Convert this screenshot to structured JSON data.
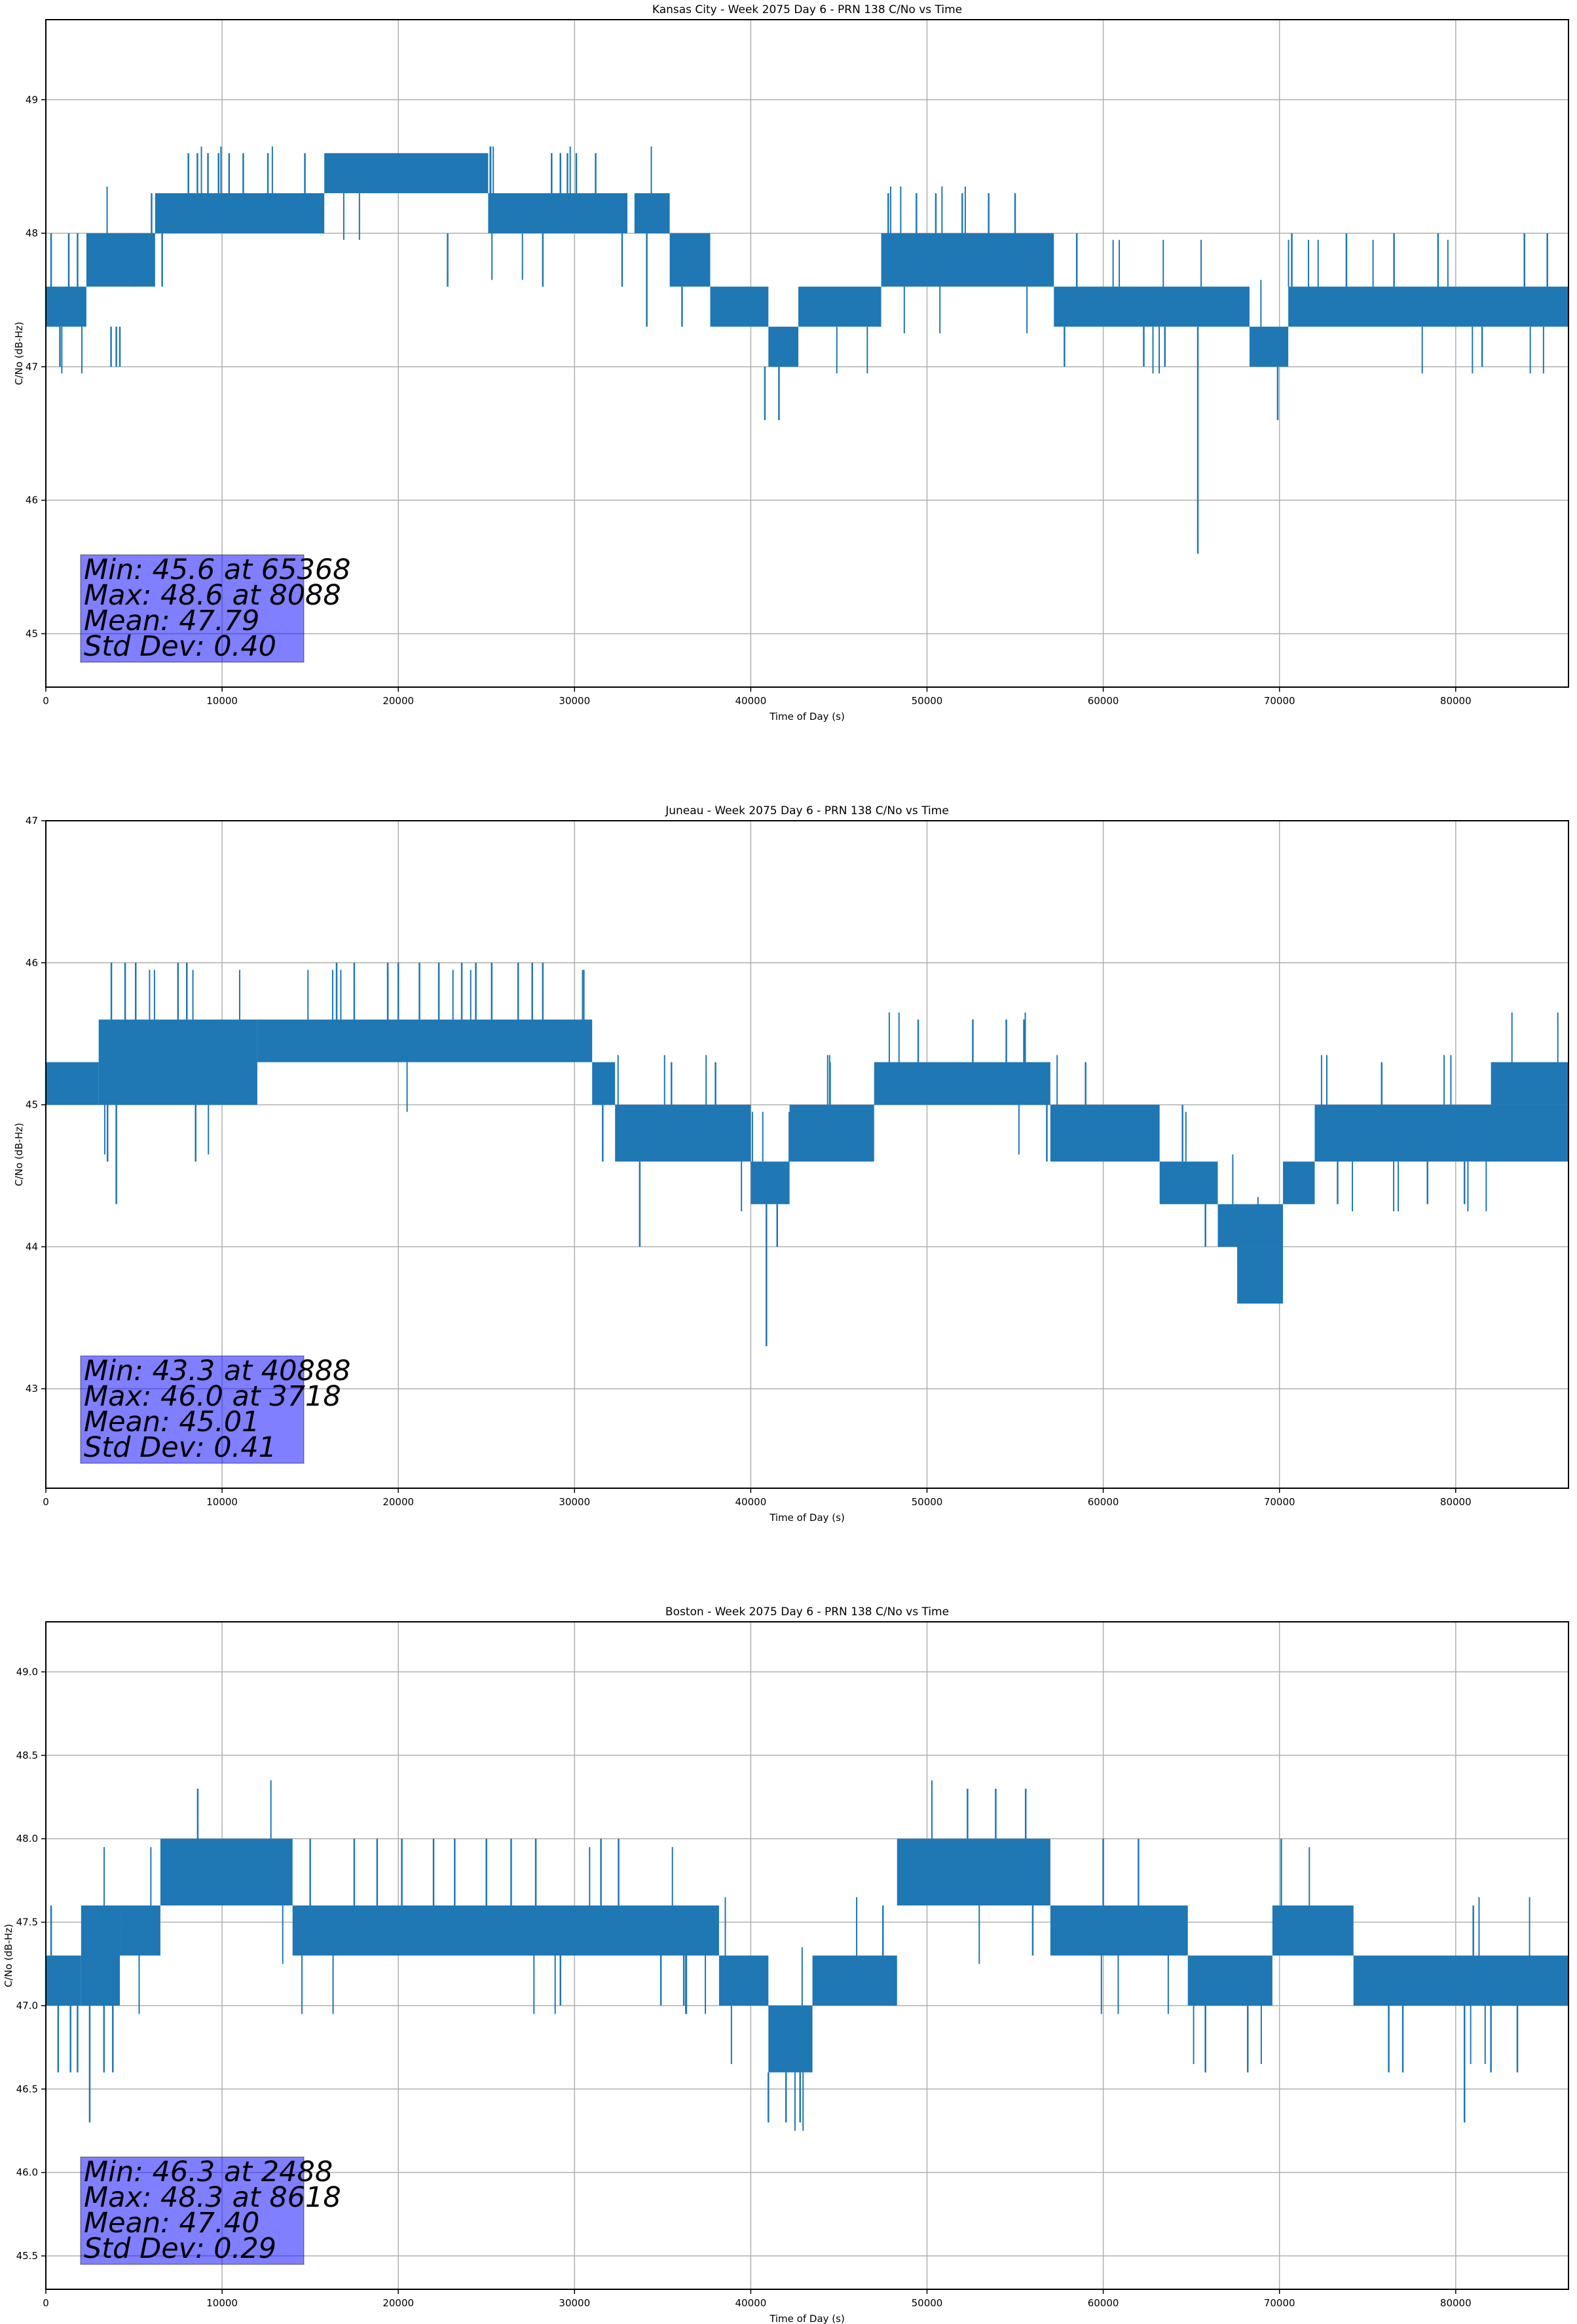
{
  "chart_data": [
    {
      "type": "line",
      "title": "Kansas City - Week 2075 Day 6 - PRN 138 C/No vs Time",
      "xlabel": "Time of Day (s)",
      "ylabel": "C/No (dB-Hz)",
      "xlim": [
        0,
        86400
      ],
      "ylim": [
        44.6,
        49.6
      ],
      "xticks": [
        0,
        10000,
        20000,
        30000,
        40000,
        50000,
        60000,
        70000,
        80000
      ],
      "yticks": [
        45,
        46,
        47,
        48,
        49
      ],
      "ytick_labels": [
        "45",
        "46",
        "47",
        "48",
        "49"
      ],
      "grid": true,
      "line_color": "#1f77b4",
      "quantized_levels": [
        45.6,
        46.6,
        47.0,
        47.3,
        47.6,
        48.0,
        48.3,
        48.6
      ],
      "bands": [
        {
          "t0": 0,
          "t1": 2300,
          "low": 47.3,
          "high": 47.6
        },
        {
          "t0": 2300,
          "t1": 6200,
          "low": 47.6,
          "high": 48.0
        },
        {
          "t0": 6200,
          "t1": 15800,
          "low": 48.0,
          "high": 48.3
        },
        {
          "t0": 15800,
          "t1": 25100,
          "low": 48.3,
          "high": 48.6
        },
        {
          "t0": 25100,
          "t1": 33000,
          "low": 48.0,
          "high": 48.3
        },
        {
          "t0": 33400,
          "t1": 35400,
          "low": 48.0,
          "high": 48.3
        },
        {
          "t0": 35400,
          "t1": 37700,
          "low": 47.6,
          "high": 48.0
        },
        {
          "t0": 37700,
          "t1": 41000,
          "low": 47.3,
          "high": 47.6
        },
        {
          "t0": 41000,
          "t1": 42700,
          "low": 47.0,
          "high": 47.3
        },
        {
          "t0": 42700,
          "t1": 47400,
          "low": 47.3,
          "high": 47.6
        },
        {
          "t0": 47400,
          "t1": 57200,
          "low": 47.6,
          "high": 48.0
        },
        {
          "t0": 57200,
          "t1": 68300,
          "low": 47.3,
          "high": 47.6
        },
        {
          "t0": 68300,
          "t1": 70500,
          "low": 47.0,
          "high": 47.3
        },
        {
          "t0": 70500,
          "t1": 86400,
          "low": 47.3,
          "high": 47.6
        }
      ],
      "spikes": [
        {
          "t": 300,
          "from": 47.3,
          "to": 48.0
        },
        {
          "t": 800,
          "from": 47.3,
          "to": 47.0
        },
        {
          "t": 1300,
          "from": 47.6,
          "to": 48.0
        },
        {
          "t": 1800,
          "from": 47.6,
          "to": 48.0
        },
        {
          "t": 3700,
          "from": 47.3,
          "to": 47.0
        },
        {
          "t": 4000,
          "from": 47.3,
          "to": 47.0
        },
        {
          "t": 4200,
          "from": 47.3,
          "to": 47.0
        },
        {
          "t": 5000,
          "from": 47.6,
          "to": 48.0
        },
        {
          "t": 6000,
          "from": 48.0,
          "to": 48.3
        },
        {
          "t": 6600,
          "from": 47.6,
          "to": 48.3
        },
        {
          "t": 8088,
          "from": 48.3,
          "to": 48.6
        },
        {
          "t": 8600,
          "from": 48.3,
          "to": 48.6
        },
        {
          "t": 9200,
          "from": 48.3,
          "to": 48.6
        },
        {
          "t": 9800,
          "from": 48.3,
          "to": 48.6
        },
        {
          "t": 10400,
          "from": 48.3,
          "to": 48.6
        },
        {
          "t": 11200,
          "from": 48.3,
          "to": 48.6
        },
        {
          "t": 12600,
          "from": 48.3,
          "to": 48.6
        },
        {
          "t": 14700,
          "from": 48.3,
          "to": 48.6
        },
        {
          "t": 22800,
          "from": 48.0,
          "to": 47.6
        },
        {
          "t": 28200,
          "from": 48.0,
          "to": 47.6
        },
        {
          "t": 28700,
          "from": 48.3,
          "to": 48.6
        },
        {
          "t": 29200,
          "from": 48.3,
          "to": 48.6
        },
        {
          "t": 29600,
          "from": 48.3,
          "to": 48.6
        },
        {
          "t": 30100,
          "from": 48.3,
          "to": 48.6
        },
        {
          "t": 31200,
          "from": 48.3,
          "to": 48.6
        },
        {
          "t": 32700,
          "from": 48.0,
          "to": 47.6
        },
        {
          "t": 34100,
          "from": 48.0,
          "to": 47.3
        },
        {
          "t": 36100,
          "from": 47.6,
          "to": 47.3
        },
        {
          "t": 40800,
          "from": 47.0,
          "to": 46.6
        },
        {
          "t": 41600,
          "from": 47.0,
          "to": 46.6
        },
        {
          "t": 47800,
          "from": 48.0,
          "to": 48.3
        },
        {
          "t": 49400,
          "from": 48.0,
          "to": 48.3
        },
        {
          "t": 50500,
          "from": 48.0,
          "to": 48.3
        },
        {
          "t": 52000,
          "from": 48.0,
          "to": 48.3
        },
        {
          "t": 53500,
          "from": 48.0,
          "to": 48.3
        },
        {
          "t": 55000,
          "from": 48.0,
          "to": 48.3
        },
        {
          "t": 57800,
          "from": 47.3,
          "to": 47.0
        },
        {
          "t": 58500,
          "from": 47.6,
          "to": 48.0
        },
        {
          "t": 62300,
          "from": 47.3,
          "to": 47.0
        },
        {
          "t": 63500,
          "from": 47.3,
          "to": 47.0
        },
        {
          "t": 65368,
          "from": 47.3,
          "to": 45.6
        },
        {
          "t": 69900,
          "from": 47.0,
          "to": 46.6
        },
        {
          "t": 70700,
          "from": 47.6,
          "to": 48.0
        },
        {
          "t": 73800,
          "from": 47.6,
          "to": 48.0
        },
        {
          "t": 76500,
          "from": 47.6,
          "to": 48.0
        },
        {
          "t": 79000,
          "from": 47.6,
          "to": 48.0
        },
        {
          "t": 81500,
          "from": 47.3,
          "to": 47.0
        },
        {
          "t": 83900,
          "from": 47.6,
          "to": 48.0
        },
        {
          "t": 85200,
          "from": 47.6,
          "to": 48.0
        }
      ],
      "stats": {
        "min_label": "Min: 45.6 at 65368",
        "max_label": "Max: 48.6 at 8088",
        "mean_label": "Mean: 47.79",
        "std_label": "Std Dev: 0.40",
        "min": 45.6,
        "min_time": 65368,
        "max": 48.6,
        "max_time": 8088,
        "mean": 47.79,
        "std": 0.4
      }
    },
    {
      "type": "line",
      "title": "Juneau - Week 2075 Day 6 - PRN 138 C/No vs Time",
      "xlabel": "Time of Day (s)",
      "ylabel": "C/No (dB-Hz)",
      "xlim": [
        0,
        86400
      ],
      "ylim": [
        42.3,
        47.0
      ],
      "xticks": [
        0,
        10000,
        20000,
        30000,
        40000,
        50000,
        60000,
        70000,
        80000
      ],
      "yticks": [
        43,
        44,
        45,
        46,
        47
      ],
      "ytick_labels": [
        "43",
        "44",
        "45",
        "46",
        "47"
      ],
      "grid": true,
      "line_color": "#1f77b4",
      "quantized_levels": [
        43.3,
        43.6,
        44.0,
        44.3,
        44.6,
        45.0,
        45.3,
        45.6,
        46.0
      ],
      "bands": [
        {
          "t0": 0,
          "t1": 3000,
          "low": 45.0,
          "high": 45.3
        },
        {
          "t0": 3000,
          "t1": 12000,
          "low": 45.0,
          "high": 45.6
        },
        {
          "t0": 12000,
          "t1": 31000,
          "low": 45.3,
          "high": 45.6
        },
        {
          "t0": 31000,
          "t1": 32300,
          "low": 45.0,
          "high": 45.3
        },
        {
          "t0": 32300,
          "t1": 40000,
          "low": 44.6,
          "high": 45.0
        },
        {
          "t0": 40000,
          "t1": 42200,
          "low": 44.3,
          "high": 44.6
        },
        {
          "t0": 42200,
          "t1": 47000,
          "low": 44.6,
          "high": 45.0
        },
        {
          "t0": 47000,
          "t1": 57000,
          "low": 45.0,
          "high": 45.3
        },
        {
          "t0": 57000,
          "t1": 63200,
          "low": 44.6,
          "high": 45.0
        },
        {
          "t0": 63200,
          "t1": 66500,
          "low": 44.3,
          "high": 44.6
        },
        {
          "t0": 66500,
          "t1": 70200,
          "low": 44.0,
          "high": 44.3
        },
        {
          "t0": 67600,
          "t1": 70200,
          "low": 43.6,
          "high": 44.0
        },
        {
          "t0": 70200,
          "t1": 72000,
          "low": 44.3,
          "high": 44.6
        },
        {
          "t0": 72000,
          "t1": 86400,
          "low": 44.6,
          "high": 45.0
        },
        {
          "t0": 82000,
          "t1": 86400,
          "low": 45.0,
          "high": 45.3
        }
      ],
      "spikes": [
        {
          "t": 3718,
          "from": 45.6,
          "to": 46.0
        },
        {
          "t": 3500,
          "from": 45.0,
          "to": 44.6
        },
        {
          "t": 4000,
          "from": 45.0,
          "to": 44.3
        },
        {
          "t": 4500,
          "from": 45.6,
          "to": 46.0
        },
        {
          "t": 5100,
          "from": 45.6,
          "to": 46.0
        },
        {
          "t": 7500,
          "from": 45.6,
          "to": 46.0
        },
        {
          "t": 8000,
          "from": 45.6,
          "to": 46.0
        },
        {
          "t": 8500,
          "from": 45.0,
          "to": 44.6
        },
        {
          "t": 16500,
          "from": 45.6,
          "to": 46.0
        },
        {
          "t": 17500,
          "from": 45.6,
          "to": 46.0
        },
        {
          "t": 19400,
          "from": 45.6,
          "to": 46.0
        },
        {
          "t": 20000,
          "from": 45.6,
          "to": 46.0
        },
        {
          "t": 21200,
          "from": 45.6,
          "to": 46.0
        },
        {
          "t": 22300,
          "from": 45.6,
          "to": 46.0
        },
        {
          "t": 23600,
          "from": 45.6,
          "to": 46.0
        },
        {
          "t": 24400,
          "from": 45.6,
          "to": 46.0
        },
        {
          "t": 25300,
          "from": 45.6,
          "to": 46.0
        },
        {
          "t": 26800,
          "from": 45.6,
          "to": 46.0
        },
        {
          "t": 27600,
          "from": 45.6,
          "to": 46.0
        },
        {
          "t": 28200,
          "from": 45.6,
          "to": 46.0
        },
        {
          "t": 31600,
          "from": 45.0,
          "to": 44.6
        },
        {
          "t": 33700,
          "from": 44.6,
          "to": 44.0
        },
        {
          "t": 35500,
          "from": 45.0,
          "to": 45.3
        },
        {
          "t": 38000,
          "from": 45.0,
          "to": 45.3
        },
        {
          "t": 40888,
          "from": 44.3,
          "to": 43.3
        },
        {
          "t": 41500,
          "from": 44.3,
          "to": 44.0
        },
        {
          "t": 44500,
          "from": 45.0,
          "to": 45.3
        },
        {
          "t": 49500,
          "from": 45.3,
          "to": 45.6
        },
        {
          "t": 52600,
          "from": 45.3,
          "to": 45.6
        },
        {
          "t": 54500,
          "from": 45.3,
          "to": 45.6
        },
        {
          "t": 55500,
          "from": 45.3,
          "to": 45.6
        },
        {
          "t": 56800,
          "from": 45.0,
          "to": 44.6
        },
        {
          "t": 59000,
          "from": 45.0,
          "to": 45.3
        },
        {
          "t": 64500,
          "from": 44.6,
          "to": 45.0
        },
        {
          "t": 65800,
          "from": 44.3,
          "to": 44.0
        },
        {
          "t": 73300,
          "from": 44.6,
          "to": 44.3
        },
        {
          "t": 75800,
          "from": 45.0,
          "to": 45.3
        },
        {
          "t": 78400,
          "from": 44.6,
          "to": 44.3
        },
        {
          "t": 80500,
          "from": 44.6,
          "to": 44.3
        }
      ],
      "stats": {
        "min_label": "Min: 43.3 at 40888",
        "max_label": "Max: 46.0 at 3718",
        "mean_label": "Mean: 45.01",
        "std_label": "Std Dev: 0.41",
        "min": 43.3,
        "min_time": 40888,
        "max": 46.0,
        "max_time": 3718,
        "mean": 45.01,
        "std": 0.41
      }
    },
    {
      "type": "line",
      "title": "Boston - Week 2075 Day 6 - PRN 138 C/No vs Time",
      "xlabel": "Time of Day (s)",
      "ylabel": "C/No (dB-Hz)",
      "xlim": [
        0,
        86400
      ],
      "ylim": [
        45.3,
        49.3
      ],
      "xticks": [
        0,
        10000,
        20000,
        30000,
        40000,
        50000,
        60000,
        70000,
        80000
      ],
      "yticks": [
        45.5,
        46.0,
        46.5,
        47.0,
        47.5,
        48.0,
        48.5,
        49.0
      ],
      "ytick_labels": [
        "45.5",
        "46.0",
        "46.5",
        "47.0",
        "47.5",
        "48.0",
        "48.5",
        "49.0"
      ],
      "grid": true,
      "line_color": "#1f77b4",
      "quantized_levels": [
        46.3,
        46.6,
        47.0,
        47.3,
        47.6,
        48.0,
        48.3
      ],
      "bands": [
        {
          "t0": 0,
          "t1": 2000,
          "low": 47.0,
          "high": 47.3
        },
        {
          "t0": 2000,
          "t1": 4200,
          "low": 47.0,
          "high": 47.6
        },
        {
          "t0": 4200,
          "t1": 6500,
          "low": 47.3,
          "high": 47.6
        },
        {
          "t0": 6500,
          "t1": 14000,
          "low": 47.6,
          "high": 48.0
        },
        {
          "t0": 14000,
          "t1": 38200,
          "low": 47.3,
          "high": 47.6
        },
        {
          "t0": 38200,
          "t1": 41000,
          "low": 47.0,
          "high": 47.3
        },
        {
          "t0": 41000,
          "t1": 43500,
          "low": 46.6,
          "high": 47.0
        },
        {
          "t0": 43500,
          "t1": 48300,
          "low": 47.0,
          "high": 47.3
        },
        {
          "t0": 48300,
          "t1": 57000,
          "low": 47.6,
          "high": 48.0
        },
        {
          "t0": 57000,
          "t1": 64800,
          "low": 47.3,
          "high": 47.6
        },
        {
          "t0": 64800,
          "t1": 69600,
          "low": 47.0,
          "high": 47.3
        },
        {
          "t0": 69600,
          "t1": 74200,
          "low": 47.3,
          "high": 47.6
        },
        {
          "t0": 74200,
          "t1": 86400,
          "low": 47.0,
          "high": 47.3
        }
      ],
      "spikes": [
        {
          "t": 300,
          "from": 47.3,
          "to": 47.6
        },
        {
          "t": 700,
          "from": 47.0,
          "to": 46.6
        },
        {
          "t": 1400,
          "from": 47.0,
          "to": 46.6
        },
        {
          "t": 1800,
          "from": 47.0,
          "to": 46.6
        },
        {
          "t": 2488,
          "from": 47.0,
          "to": 46.3
        },
        {
          "t": 3300,
          "from": 47.0,
          "to": 46.6
        },
        {
          "t": 3800,
          "from": 47.0,
          "to": 46.6
        },
        {
          "t": 6800,
          "from": 47.6,
          "to": 48.0
        },
        {
          "t": 8618,
          "from": 48.0,
          "to": 48.3
        },
        {
          "t": 15000,
          "from": 47.6,
          "to": 48.0
        },
        {
          "t": 17500,
          "from": 47.6,
          "to": 48.0
        },
        {
          "t": 18800,
          "from": 47.6,
          "to": 48.0
        },
        {
          "t": 20200,
          "from": 47.6,
          "to": 48.0
        },
        {
          "t": 22000,
          "from": 47.6,
          "to": 48.0
        },
        {
          "t": 23200,
          "from": 47.6,
          "to": 48.0
        },
        {
          "t": 25000,
          "from": 47.6,
          "to": 48.0
        },
        {
          "t": 26400,
          "from": 47.6,
          "to": 48.0
        },
        {
          "t": 27800,
          "from": 47.6,
          "to": 48.0
        },
        {
          "t": 29200,
          "from": 47.3,
          "to": 47.0
        },
        {
          "t": 31500,
          "from": 47.6,
          "to": 48.0
        },
        {
          "t": 32500,
          "from": 47.6,
          "to": 48.0
        },
        {
          "t": 34900,
          "from": 47.3,
          "to": 47.0
        },
        {
          "t": 36200,
          "from": 47.3,
          "to": 47.0
        },
        {
          "t": 41000,
          "from": 46.6,
          "to": 46.3
        },
        {
          "t": 42000,
          "from": 46.6,
          "to": 46.3
        },
        {
          "t": 42800,
          "from": 46.6,
          "to": 46.3
        },
        {
          "t": 47500,
          "from": 47.3,
          "to": 47.6
        },
        {
          "t": 52300,
          "from": 48.0,
          "to": 48.3
        },
        {
          "t": 53900,
          "from": 48.0,
          "to": 48.3
        },
        {
          "t": 55600,
          "from": 48.0,
          "to": 48.3
        },
        {
          "t": 56000,
          "from": 47.6,
          "to": 47.3
        },
        {
          "t": 60000,
          "from": 47.6,
          "to": 48.0
        },
        {
          "t": 62000,
          "from": 47.6,
          "to": 48.0
        },
        {
          "t": 65800,
          "from": 47.0,
          "to": 46.6
        },
        {
          "t": 68200,
          "from": 47.0,
          "to": 46.6
        },
        {
          "t": 70100,
          "from": 47.6,
          "to": 48.0
        },
        {
          "t": 76200,
          "from": 47.0,
          "to": 46.6
        },
        {
          "t": 77000,
          "from": 47.0,
          "to": 46.6
        },
        {
          "t": 80500,
          "from": 47.0,
          "to": 46.3
        },
        {
          "t": 82000,
          "from": 47.0,
          "to": 46.6
        },
        {
          "t": 83500,
          "from": 47.0,
          "to": 46.6
        },
        {
          "t": 81000,
          "from": 47.3,
          "to": 47.6
        }
      ],
      "stats": {
        "min_label": "Min: 46.3 at 2488",
        "max_label": "Max: 48.3 at 8618",
        "mean_label": "Mean: 47.40",
        "std_label": "Std Dev: 0.29",
        "min": 46.3,
        "min_time": 2488,
        "max": 48.3,
        "max_time": 8618,
        "mean": 47.4,
        "std": 0.29
      }
    }
  ]
}
